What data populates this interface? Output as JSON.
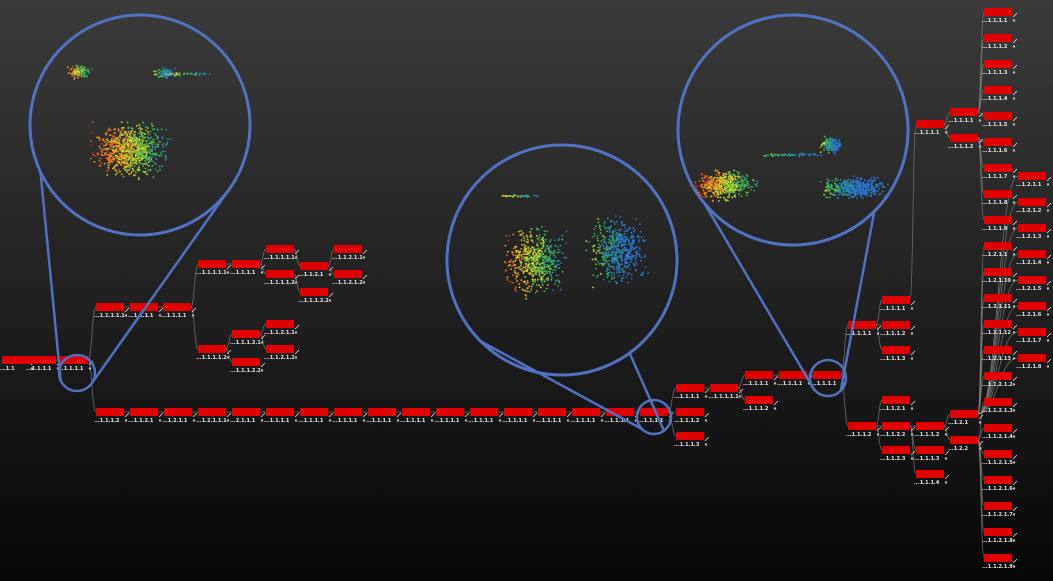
{
  "nodes": [
    {
      "label": "...1.1"
    },
    {
      "label": "...1.1.1.1"
    },
    {
      "label": "...1.1.1.1"
    },
    {
      "label": "...1.1.1.1.1"
    },
    {
      "label": "...1.1.1.1"
    },
    {
      "label": "...1.1.1.1"
    },
    {
      "label": "...1.1.1.1.1"
    },
    {
      "label": "...1.1.1.1"
    },
    {
      "label": "...1.1.1.1.1"
    },
    {
      "label": "...1.1.1.1.2"
    },
    {
      "label": "...1.1.2.1"
    },
    {
      "label": "...1.1.2.1.1"
    },
    {
      "label": "...1.1.2.1.2"
    },
    {
      "label": "...1.1.1.2.2"
    },
    {
      "label": "...1.1.1.1.2"
    },
    {
      "label": "...1.1.1.2.1"
    },
    {
      "label": "...1.1.1.2.2"
    },
    {
      "label": "...1.1.2.1.1"
    },
    {
      "label": "...1.1.2.1.2"
    },
    {
      "label": "...1.1.1.2"
    },
    {
      "label": "...1.1.2.1"
    },
    {
      "label": "...1.2.1.1"
    },
    {
      "label": "...1.2.1.1.1"
    },
    {
      "label": "...2.1.1.1"
    },
    {
      "label": "...1.1.1.1"
    },
    {
      "label": "...1.1.1.1"
    },
    {
      "label": "...1.1.1.1"
    },
    {
      "label": "...1.1.1.1"
    },
    {
      "label": "...1.1.1.1"
    },
    {
      "label": "...1.1.1.1"
    },
    {
      "label": "...1.1.1.1"
    },
    {
      "label": "...1.1.1.1"
    },
    {
      "label": "...1.1.1.1"
    },
    {
      "label": "...1.1.1.1"
    },
    {
      "label": "...1.1.1.1"
    },
    {
      "label": "...1.1.1.1"
    },
    {
      "label": "...1.1.1.1"
    },
    {
      "label": "...1.1.1.2"
    },
    {
      "label": "...1.1.1.3"
    },
    {
      "label": "...1.1.1.1.1"
    },
    {
      "label": "...1.1.1.1"
    },
    {
      "label": "...1.1.1.1"
    },
    {
      "label": "...1.1.1.1"
    },
    {
      "label": "...1.1.1.2"
    },
    {
      "label": "...1.1.1.1"
    },
    {
      "label": "...1.1.1.1"
    },
    {
      "label": "...1.1.1.2"
    },
    {
      "label": "...1.1.1.3"
    },
    {
      "label": "...1.1.1.2"
    },
    {
      "label": "...1.1.2.1"
    },
    {
      "label": "...1.1.2.2"
    },
    {
      "label": "...1.1.2.3"
    },
    {
      "label": "...1.1.1.2"
    },
    {
      "label": "...1.1.1.3"
    },
    {
      "label": "...1.1.1.4"
    },
    {
      "label": "...1.2.1"
    },
    {
      "label": "...1.2.2"
    },
    {
      "label": "...1.1.1.1"
    },
    {
      "label": "...1.1.1.1"
    },
    {
      "label": "...1.1.1.2"
    },
    {
      "label": "...1.1.1.1"
    },
    {
      "label": "...1.1.1.2"
    },
    {
      "label": "...1.1.1.3"
    },
    {
      "label": "...1.1.1.4"
    },
    {
      "label": "...1.1.1.5"
    },
    {
      "label": "...1.1.1.6"
    },
    {
      "label": "...1.1.1.7"
    },
    {
      "label": "...1.1.1.8"
    },
    {
      "label": "...1.1.1.9"
    },
    {
      "label": "...1.2.1.1"
    },
    {
      "label": "...1.2.1.10"
    },
    {
      "label": "...1.2.1.11"
    },
    {
      "label": "...1.2.1.12"
    },
    {
      "label": "...1.2.1.13"
    },
    {
      "label": "...1.1.2.1.2"
    },
    {
      "label": "...1.1.2.1.3"
    },
    {
      "label": "...1.1.2.1.4"
    },
    {
      "label": "...1.1.2.1.5"
    },
    {
      "label": "...1.1.2.1.6"
    },
    {
      "label": "...1.1.2.1.7"
    },
    {
      "label": "...1.1.2.1.8"
    },
    {
      "label": "...1.1.2.1.9"
    },
    {
      "label": "...1.2.1.1"
    },
    {
      "label": "...1.2.1.2"
    },
    {
      "label": "...1.2.1.3"
    },
    {
      "label": "...1.2.1.4"
    },
    {
      "label": "...1.2.1.5"
    },
    {
      "label": "...1.2.1.6"
    },
    {
      "label": "...1.2.1.7"
    },
    {
      "label": "...1.2.1.8"
    }
  ]
}
